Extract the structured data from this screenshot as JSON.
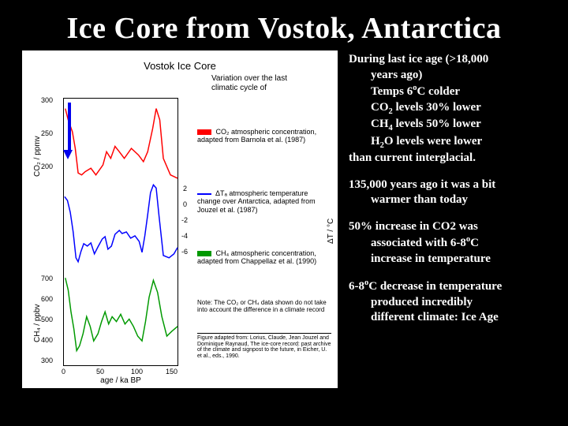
{
  "title": "Ice Core from Vostok, Antarctica",
  "text": {
    "b1_l1": "During last ice age (>18,000",
    "b1_l2": "years ago)",
    "b1_l3_pre": "Temps 6",
    "b1_l3_post": "C colder",
    "b1_l4_pre": "CO",
    "b1_l4_post": " levels 30% lower",
    "b1_l5_pre": "CH",
    "b1_l5_post": " levels 50% lower",
    "b1_l6_pre": "H",
    "b1_l6_post": "O levels were lower",
    "b1_l7": "than current interglacial.",
    "b2_l1": "135,000 years ago it was a bit",
    "b2_l2": "warmer than today",
    "b3_l1": "50% increase in CO2 was",
    "b3_l2_pre": "associated with 6-8",
    "b3_l2_post": "C",
    "b3_l3": "increase in temperature",
    "b4_l1_pre": "6-8",
    "b4_l1_post": "C decrease in temperature",
    "b4_l2": "produced incredibly",
    "b4_l3": "different climate: Ice Age"
  },
  "chart": {
    "title": "Vostok Ice Core",
    "subtitle": "Variation over the last climatic cycle of",
    "x_label": "age / ka BP",
    "x_ticks": [
      "0",
      "50",
      "100",
      "150"
    ],
    "x_range": [
      0,
      160
    ],
    "panels": {
      "co2": {
        "y_label": "CO₂ / ppmv",
        "y_ticks": [
          "300",
          "250",
          "200"
        ],
        "y_range": [
          180,
          310
        ],
        "trace_color": "#ff0000",
        "legend_text": "CO₂ atmospheric concentration, adapted from Barnola et al. (1987)",
        "points": [
          [
            2,
            295
          ],
          [
            6,
            278
          ],
          [
            12,
            260
          ],
          [
            16,
            235
          ],
          [
            20,
            198
          ],
          [
            25,
            195
          ],
          [
            30,
            200
          ],
          [
            38,
            205
          ],
          [
            45,
            195
          ],
          [
            55,
            210
          ],
          [
            60,
            230
          ],
          [
            66,
            220
          ],
          [
            72,
            238
          ],
          [
            78,
            230
          ],
          [
            85,
            220
          ],
          [
            95,
            235
          ],
          [
            105,
            225
          ],
          [
            112,
            215
          ],
          [
            118,
            230
          ],
          [
            125,
            265
          ],
          [
            130,
            295
          ],
          [
            135,
            278
          ],
          [
            140,
            220
          ],
          [
            150,
            195
          ],
          [
            160,
            190
          ]
        ]
      },
      "dt": {
        "y_label": "ΔT / °C",
        "y_ticks": [
          "2",
          "0",
          "-2",
          "-4",
          "-6"
        ],
        "y_range": [
          -8,
          3
        ],
        "trace_color": "#0000ff",
        "legend_text": "ΔTₐ atmospheric temperature change over Antarctica, adapted from Jouzel et al. (1987)",
        "points": [
          [
            1,
            0.5
          ],
          [
            5,
            0
          ],
          [
            9,
            -1.5
          ],
          [
            13,
            -4
          ],
          [
            17,
            -7.3
          ],
          [
            20,
            -7.8
          ],
          [
            24,
            -6.5
          ],
          [
            28,
            -5.5
          ],
          [
            33,
            -5.8
          ],
          [
            38,
            -5.4
          ],
          [
            43,
            -6.8
          ],
          [
            48,
            -5.9
          ],
          [
            54,
            -4.9
          ],
          [
            58,
            -4.6
          ],
          [
            62,
            -6.2
          ],
          [
            67,
            -5.8
          ],
          [
            72,
            -4.3
          ],
          [
            78,
            -3.8
          ],
          [
            82,
            -4.2
          ],
          [
            88,
            -4.0
          ],
          [
            94,
            -4.8
          ],
          [
            100,
            -4.5
          ],
          [
            106,
            -5.2
          ],
          [
            110,
            -6.6
          ],
          [
            114,
            -4.5
          ],
          [
            118,
            -1.8
          ],
          [
            122,
            1.0
          ],
          [
            126,
            2.0
          ],
          [
            130,
            1.6
          ],
          [
            134,
            -2.0
          ],
          [
            140,
            -7.0
          ],
          [
            148,
            -7.3
          ],
          [
            155,
            -6.8
          ],
          [
            160,
            -6.0
          ]
        ]
      },
      "ch4": {
        "y_label": "CH₄ / ppbv",
        "y_ticks": [
          "700",
          "600",
          "500",
          "400",
          "300"
        ],
        "y_range": [
          300,
          720
        ],
        "trace_color": "#009900",
        "legend_text": "CH₄ atmospheric concentration, adapted from Chappellaz et al. (1990)",
        "points": [
          [
            2,
            660
          ],
          [
            6,
            610
          ],
          [
            10,
            520
          ],
          [
            14,
            450
          ],
          [
            18,
            360
          ],
          [
            22,
            380
          ],
          [
            27,
            430
          ],
          [
            32,
            500
          ],
          [
            37,
            460
          ],
          [
            42,
            400
          ],
          [
            48,
            430
          ],
          [
            53,
            480
          ],
          [
            58,
            520
          ],
          [
            63,
            470
          ],
          [
            68,
            500
          ],
          [
            74,
            480
          ],
          [
            80,
            510
          ],
          [
            86,
            470
          ],
          [
            92,
            490
          ],
          [
            98,
            460
          ],
          [
            104,
            420
          ],
          [
            110,
            400
          ],
          [
            115,
            480
          ],
          [
            120,
            580
          ],
          [
            126,
            650
          ],
          [
            132,
            600
          ],
          [
            138,
            500
          ],
          [
            145,
            420
          ],
          [
            152,
            440
          ],
          [
            160,
            460
          ]
        ]
      }
    },
    "note": "Note: The CO₂ or CH₄ data shown do not take into account the difference in a climate record",
    "citation": "Figure adapted from: Lorius, Claude, Jean Jouzel and Dominique Raynaud, The ice-core record: past archive of the climate and signpost to the future, in Eicher, U. et al., eds., 1990.",
    "background_color": "#ffffff",
    "axis_color": "#000000",
    "grid_color": "#cccccc"
  },
  "slide_bg": "#000000",
  "text_color": "#ffffff"
}
